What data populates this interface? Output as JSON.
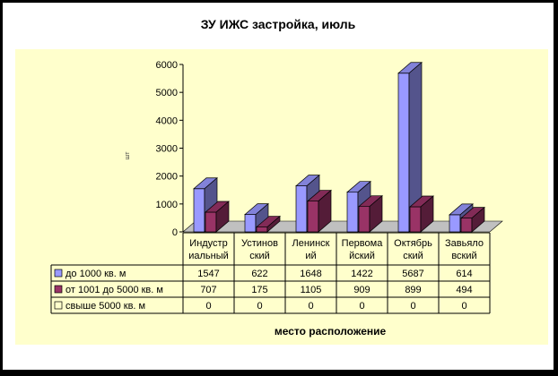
{
  "chart_data": {
    "type": "bar",
    "title": "ЗУ ИЖС застройка, июль",
    "ylabel": "шт",
    "xlabel": "место расположение",
    "ylim": [
      0,
      6000
    ],
    "yticks": [
      "0",
      "1000",
      "2000",
      "3000",
      "4000",
      "5000",
      "6000"
    ],
    "grid": false,
    "categories": [
      [
        "Индустр",
        "иальный"
      ],
      [
        "Устинов",
        "ский"
      ],
      [
        "Ленинск",
        "ий"
      ],
      [
        "Первома",
        "йский"
      ],
      [
        "Октябрь",
        "ский"
      ],
      [
        "Завьяло",
        "вский"
      ]
    ],
    "series": [
      {
        "name": "до 1000 кв. м",
        "color": "#9999ff",
        "values": [
          1547,
          622,
          1648,
          1422,
          5687,
          614
        ]
      },
      {
        "name": "от 1001 до 5000 кв. м",
        "color": "#993366",
        "values": [
          707,
          175,
          1105,
          909,
          899,
          494
        ]
      },
      {
        "name": "свыше 5000 кв. м",
        "color": "#ffffcc",
        "values": [
          0,
          0,
          0,
          0,
          0,
          0
        ]
      }
    ]
  }
}
